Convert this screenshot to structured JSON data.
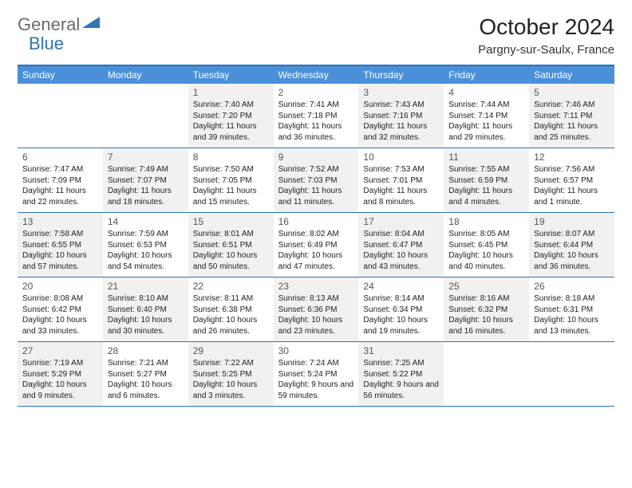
{
  "logo": {
    "part1": "General",
    "part2": "Blue"
  },
  "title": "October 2024",
  "location": "Pargny-sur-Saulx, France",
  "colors": {
    "header_bar": "#4a90d9",
    "border": "#2d74b8",
    "gray_bg": "#f1f1f1",
    "logo_gray": "#6b6b6b",
    "logo_blue": "#2d74b8"
  },
  "dayNames": [
    "Sunday",
    "Monday",
    "Tuesday",
    "Wednesday",
    "Thursday",
    "Friday",
    "Saturday"
  ],
  "weeks": [
    [
      {
        "n": "",
        "gray": false,
        "empty": true
      },
      {
        "n": "",
        "gray": false,
        "empty": true
      },
      {
        "n": "1",
        "gray": true,
        "sr": "7:40 AM",
        "ss": "7:20 PM",
        "dl": "11 hours and 39 minutes."
      },
      {
        "n": "2",
        "gray": false,
        "sr": "7:41 AM",
        "ss": "7:18 PM",
        "dl": "11 hours and 36 minutes."
      },
      {
        "n": "3",
        "gray": true,
        "sr": "7:43 AM",
        "ss": "7:16 PM",
        "dl": "11 hours and 32 minutes."
      },
      {
        "n": "4",
        "gray": false,
        "sr": "7:44 AM",
        "ss": "7:14 PM",
        "dl": "11 hours and 29 minutes."
      },
      {
        "n": "5",
        "gray": true,
        "sr": "7:46 AM",
        "ss": "7:11 PM",
        "dl": "11 hours and 25 minutes."
      }
    ],
    [
      {
        "n": "6",
        "gray": false,
        "sr": "7:47 AM",
        "ss": "7:09 PM",
        "dl": "11 hours and 22 minutes."
      },
      {
        "n": "7",
        "gray": true,
        "sr": "7:49 AM",
        "ss": "7:07 PM",
        "dl": "11 hours and 18 minutes."
      },
      {
        "n": "8",
        "gray": false,
        "sr": "7:50 AM",
        "ss": "7:05 PM",
        "dl": "11 hours and 15 minutes."
      },
      {
        "n": "9",
        "gray": true,
        "sr": "7:52 AM",
        "ss": "7:03 PM",
        "dl": "11 hours and 11 minutes."
      },
      {
        "n": "10",
        "gray": false,
        "sr": "7:53 AM",
        "ss": "7:01 PM",
        "dl": "11 hours and 8 minutes."
      },
      {
        "n": "11",
        "gray": true,
        "sr": "7:55 AM",
        "ss": "6:59 PM",
        "dl": "11 hours and 4 minutes."
      },
      {
        "n": "12",
        "gray": false,
        "sr": "7:56 AM",
        "ss": "6:57 PM",
        "dl": "11 hours and 1 minute."
      }
    ],
    [
      {
        "n": "13",
        "gray": true,
        "sr": "7:58 AM",
        "ss": "6:55 PM",
        "dl": "10 hours and 57 minutes."
      },
      {
        "n": "14",
        "gray": false,
        "sr": "7:59 AM",
        "ss": "6:53 PM",
        "dl": "10 hours and 54 minutes."
      },
      {
        "n": "15",
        "gray": true,
        "sr": "8:01 AM",
        "ss": "6:51 PM",
        "dl": "10 hours and 50 minutes."
      },
      {
        "n": "16",
        "gray": false,
        "sr": "8:02 AM",
        "ss": "6:49 PM",
        "dl": "10 hours and 47 minutes."
      },
      {
        "n": "17",
        "gray": true,
        "sr": "8:04 AM",
        "ss": "6:47 PM",
        "dl": "10 hours and 43 minutes."
      },
      {
        "n": "18",
        "gray": false,
        "sr": "8:05 AM",
        "ss": "6:45 PM",
        "dl": "10 hours and 40 minutes."
      },
      {
        "n": "19",
        "gray": true,
        "sr": "8:07 AM",
        "ss": "6:44 PM",
        "dl": "10 hours and 36 minutes."
      }
    ],
    [
      {
        "n": "20",
        "gray": false,
        "sr": "8:08 AM",
        "ss": "6:42 PM",
        "dl": "10 hours and 33 minutes."
      },
      {
        "n": "21",
        "gray": true,
        "sr": "8:10 AM",
        "ss": "6:40 PM",
        "dl": "10 hours and 30 minutes."
      },
      {
        "n": "22",
        "gray": false,
        "sr": "8:11 AM",
        "ss": "6:38 PM",
        "dl": "10 hours and 26 minutes."
      },
      {
        "n": "23",
        "gray": true,
        "sr": "8:13 AM",
        "ss": "6:36 PM",
        "dl": "10 hours and 23 minutes."
      },
      {
        "n": "24",
        "gray": false,
        "sr": "8:14 AM",
        "ss": "6:34 PM",
        "dl": "10 hours and 19 minutes."
      },
      {
        "n": "25",
        "gray": true,
        "sr": "8:16 AM",
        "ss": "6:32 PM",
        "dl": "10 hours and 16 minutes."
      },
      {
        "n": "26",
        "gray": false,
        "sr": "8:18 AM",
        "ss": "6:31 PM",
        "dl": "10 hours and 13 minutes."
      }
    ],
    [
      {
        "n": "27",
        "gray": true,
        "sr": "7:19 AM",
        "ss": "5:29 PM",
        "dl": "10 hours and 9 minutes."
      },
      {
        "n": "28",
        "gray": false,
        "sr": "7:21 AM",
        "ss": "5:27 PM",
        "dl": "10 hours and 6 minutes."
      },
      {
        "n": "29",
        "gray": true,
        "sr": "7:22 AM",
        "ss": "5:25 PM",
        "dl": "10 hours and 3 minutes."
      },
      {
        "n": "30",
        "gray": false,
        "sr": "7:24 AM",
        "ss": "5:24 PM",
        "dl": "9 hours and 59 minutes."
      },
      {
        "n": "31",
        "gray": true,
        "sr": "7:25 AM",
        "ss": "5:22 PM",
        "dl": "9 hours and 56 minutes."
      },
      {
        "n": "",
        "gray": false,
        "empty": true
      },
      {
        "n": "",
        "gray": false,
        "empty": true
      }
    ]
  ],
  "labels": {
    "sunrise": "Sunrise:",
    "sunset": "Sunset:",
    "daylight": "Daylight:"
  }
}
